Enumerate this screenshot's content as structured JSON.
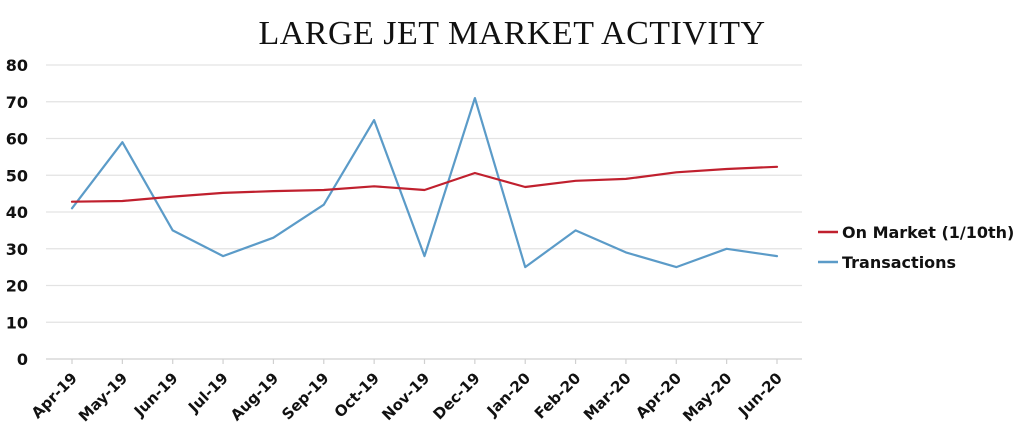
{
  "chart_data": {
    "type": "line",
    "title": "LARGE JET MARKET ACTIVITY",
    "xlabel": "",
    "ylabel": "",
    "categories": [
      "Apr-19",
      "May-19",
      "Jun-19",
      "Jul-19",
      "Aug-19",
      "Sep-19",
      "Oct-19",
      "Nov-19",
      "Dec-19",
      "Jan-20",
      "Feb-20",
      "Mar-20",
      "Apr-20",
      "May-20",
      "Jun-20"
    ],
    "ylim": [
      0,
      80
    ],
    "yticks": [
      0,
      10,
      20,
      30,
      40,
      50,
      60,
      70,
      80
    ],
    "grid": true,
    "legend_position": "right",
    "series": [
      {
        "name": "On Market (1/10th)",
        "color": "#c0202e",
        "values": [
          42.8,
          43.0,
          44.2,
          45.2,
          45.7,
          46.0,
          47.0,
          46.0,
          50.6,
          46.8,
          48.5,
          49.0,
          50.8,
          51.7,
          52.3
        ]
      },
      {
        "name": "Transactions",
        "color": "#5b9bc8",
        "values": [
          41,
          59,
          35,
          28,
          33,
          42,
          65,
          28,
          71,
          25,
          35,
          29,
          25,
          30,
          28
        ]
      }
    ]
  }
}
